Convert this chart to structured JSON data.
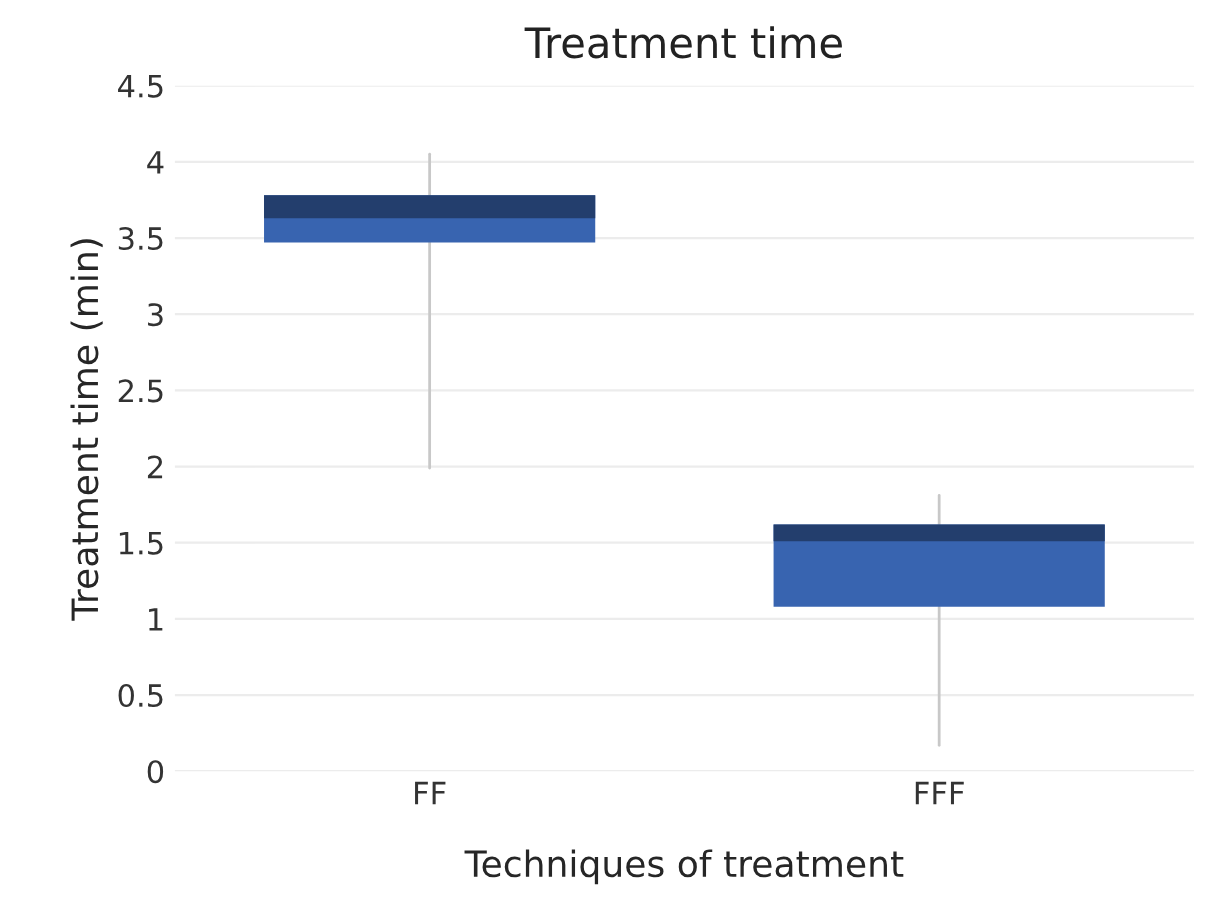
{
  "chart_data": {
    "type": "box",
    "title": "Treatment time",
    "xlabel": "Techniques of treatment",
    "ylabel": "Treatment time (min)",
    "categories": [
      "FF",
      "FFF"
    ],
    "series": [
      {
        "color": "#3864b0",
        "boxes": [
          {
            "low": 1.99,
            "q1": 3.47,
            "median": 3.63,
            "q3": 3.78,
            "high": 4.05
          },
          {
            "low": 0.17,
            "q1": 1.08,
            "median": 1.51,
            "q3": 1.62,
            "high": 1.81
          }
        ]
      }
    ],
    "ylim": [
      0,
      4.5
    ],
    "yticks": [
      0,
      0.5,
      1,
      1.5,
      2,
      2.5,
      3,
      3.5,
      4,
      4.5
    ],
    "grid": "y"
  }
}
